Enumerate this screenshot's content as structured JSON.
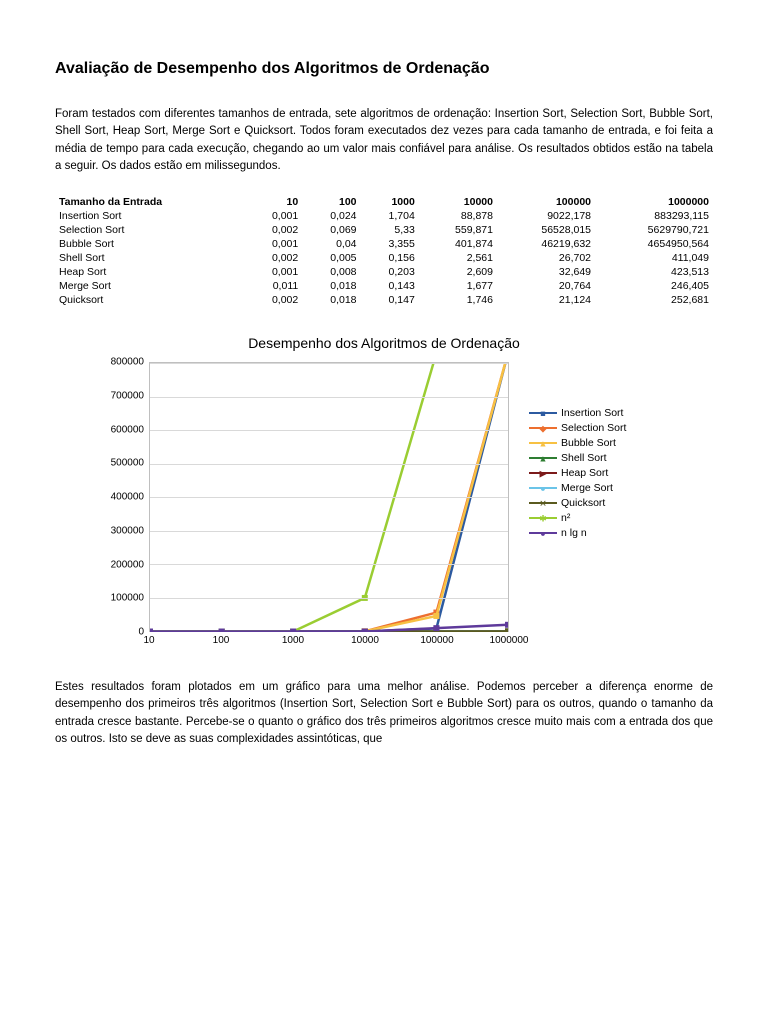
{
  "title": "Avaliação de Desempenho dos Algoritmos de Ordenação",
  "intro": "Foram testados com diferentes tamanhos de entrada, sete algoritmos de ordenação: Insertion Sort, Selection Sort, Bubble Sort, Shell Sort, Heap Sort, Merge Sort e Quicksort. Todos foram executados dez vezes para cada tamanho de entrada, e foi feita a média de tempo para cada execução, chegando ao um valor mais confiável para análise. Os resultados obtidos estão na tabela a seguir. Os dados estão em milissegundos.",
  "table": {
    "header": [
      "Tamanho da Entrada",
      "10",
      "100",
      "1000",
      "10000",
      "100000",
      "1000000"
    ],
    "rows": [
      [
        "Insertion Sort",
        "0,001",
        "0,024",
        "1,704",
        "88,878",
        "9022,178",
        "883293,115"
      ],
      [
        "Selection Sort",
        "0,002",
        "0,069",
        "5,33",
        "559,871",
        "56528,015",
        "5629790,721"
      ],
      [
        "Bubble Sort",
        "0,001",
        "0,04",
        "3,355",
        "401,874",
        "46219,632",
        "4654950,564"
      ],
      [
        "Shell Sort",
        "0,002",
        "0,005",
        "0,156",
        "2,561",
        "26,702",
        "411,049"
      ],
      [
        "Heap Sort",
        "0,001",
        "0,008",
        "0,203",
        "2,609",
        "32,649",
        "423,513"
      ],
      [
        "Merge Sort",
        "0,011",
        "0,018",
        "0,143",
        "1,677",
        "20,764",
        "246,405"
      ],
      [
        "Quicksort",
        "0,002",
        "0,018",
        "0,147",
        "1,746",
        "21,124",
        "252,681"
      ]
    ]
  },
  "chart": {
    "title": "Desempenho dos Algoritmos de Ordenação",
    "type": "line",
    "background_color": "#ffffff",
    "grid_color": "#d9d9d9",
    "border_color": "#bfbfbf",
    "ylim": [
      0,
      800000
    ],
    "ytick_step": 100000,
    "yticks": [
      "0",
      "100000",
      "200000",
      "300000",
      "400000",
      "500000",
      "600000",
      "700000",
      "800000"
    ],
    "x_categories": [
      "10",
      "100",
      "1000",
      "10000",
      "100000",
      "1000000"
    ],
    "line_width": 2.5,
    "marker_size": 6,
    "series": [
      {
        "name": "Insertion Sort",
        "color": "#2c5aa0",
        "marker": "■",
        "values": [
          0.001,
          0.024,
          1.704,
          88.878,
          9022.178,
          883293.115
        ]
      },
      {
        "name": "Selection Sort",
        "color": "#ed6f2f",
        "marker": "◆",
        "values": [
          0.002,
          0.069,
          5.33,
          559.871,
          56528.015,
          5629790.721
        ]
      },
      {
        "name": "Bubble Sort",
        "color": "#f7c143",
        "marker": "▲",
        "values": [
          0.001,
          0.04,
          3.355,
          401.874,
          46219.632,
          4654950.564
        ]
      },
      {
        "name": "Shell Sort",
        "color": "#2e7d32",
        "marker": "▲",
        "values": [
          0.002,
          0.005,
          0.156,
          2.561,
          26.702,
          411.049
        ]
      },
      {
        "name": "Heap Sort",
        "color": "#7b1a1a",
        "marker": "▶",
        "values": [
          0.001,
          0.008,
          0.203,
          2.609,
          32.649,
          423.513
        ]
      },
      {
        "name": "Merge Sort",
        "color": "#6bc4e8",
        "marker": "●",
        "values": [
          0.011,
          0.018,
          0.143,
          1.677,
          20.764,
          246.405
        ]
      },
      {
        "name": "Quicksort",
        "color": "#5a5a1f",
        "marker": "✕",
        "values": [
          0.002,
          0.018,
          0.147,
          1.746,
          21.124,
          252.681
        ]
      },
      {
        "name": "n²",
        "color": "#9acd32",
        "marker": "✱",
        "values": [
          100,
          10000,
          1000000,
          100000000,
          10000000000,
          1000000000000
        ],
        "display_values": [
          0,
          0,
          0,
          100000,
          800001,
          800001
        ]
      },
      {
        "name": "n lg n",
        "color": "#5e3a9b",
        "marker": "●",
        "values": [
          33,
          664,
          9966,
          132877,
          1660964,
          19931569
        ],
        "display_values": [
          0,
          0,
          0,
          0,
          10000,
          20000
        ]
      }
    ],
    "legend_position": "right",
    "font_size_title": 14,
    "font_size_tick": 10,
    "font_size_legend": 10.5
  },
  "closing": "Estes resultados foram plotados em um gráfico para uma melhor análise. Podemos perceber a diferença enorme de desempenho dos primeiros três algoritmos (Insertion Sort, Selection Sort e Bubble Sort) para os outros, quando o tamanho da entrada cresce bastante. Percebe-se o quanto o gráfico dos três primeiros algoritmos cresce muito mais com a entrada dos que os outros. Isto se deve as suas complexidades assintóticas, que"
}
